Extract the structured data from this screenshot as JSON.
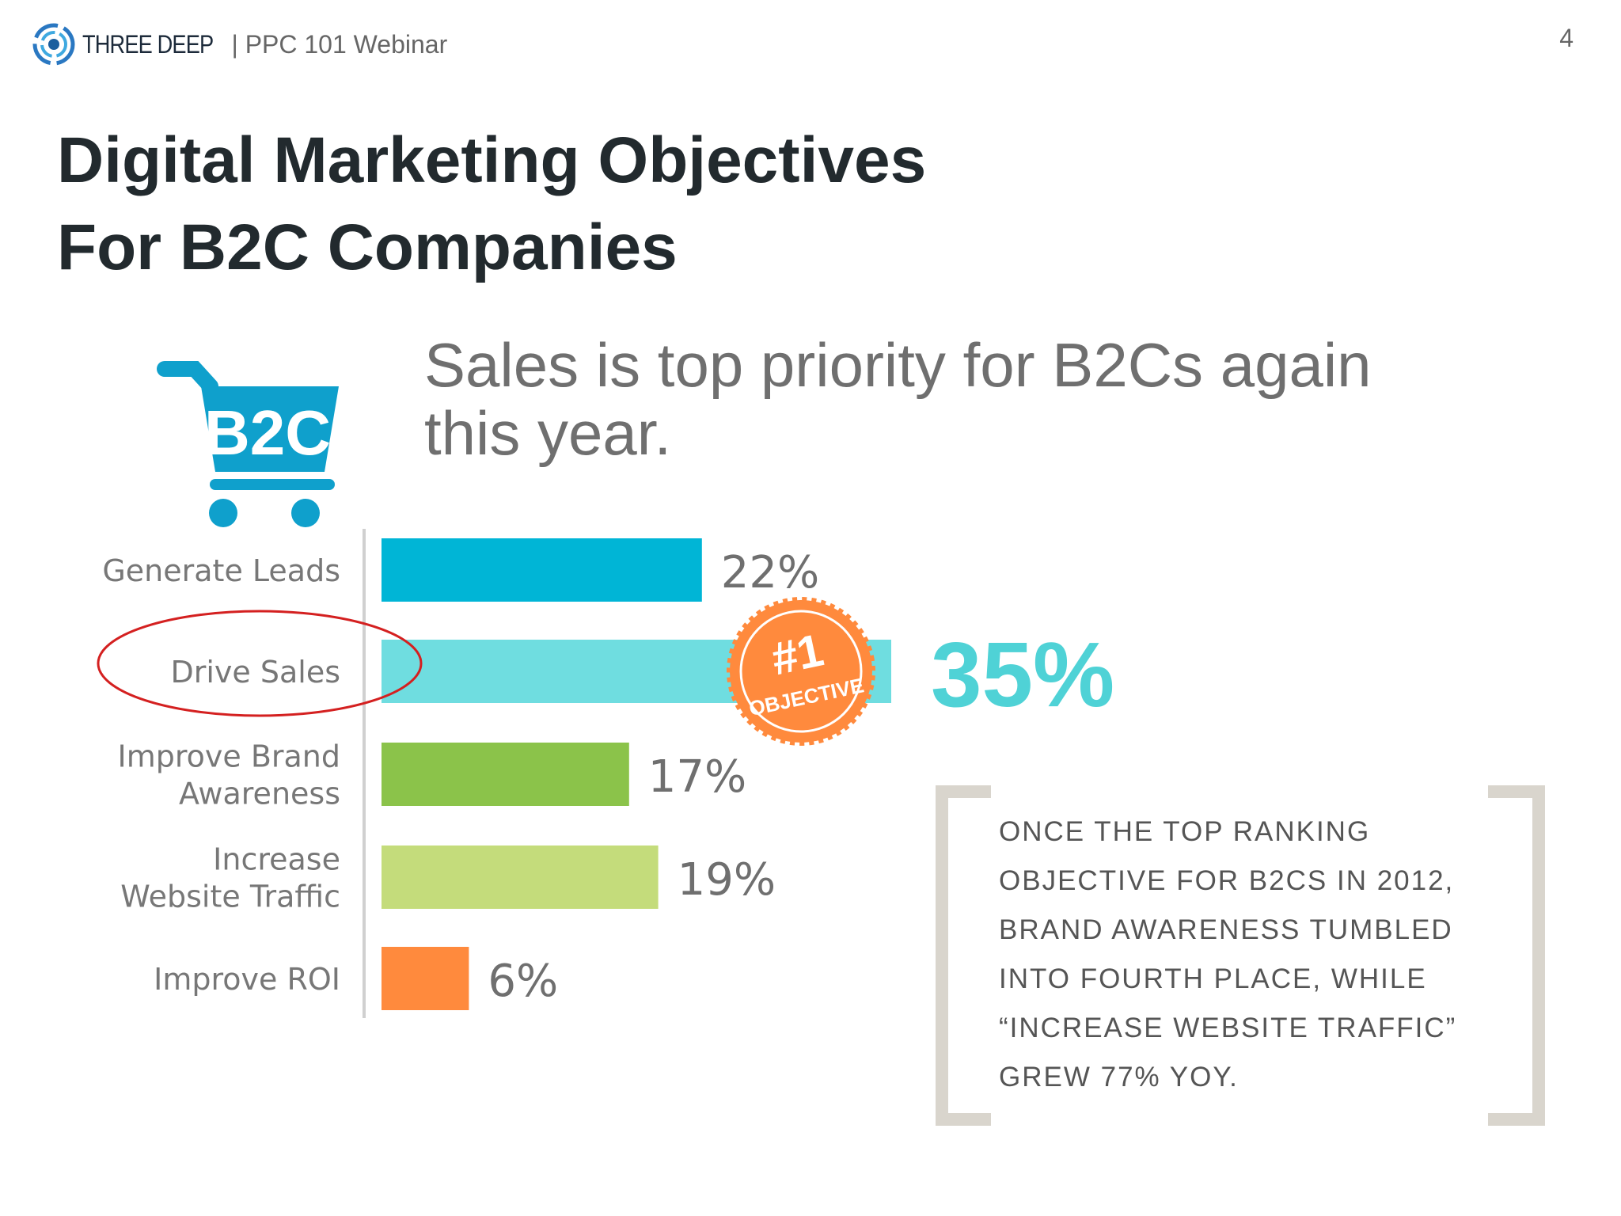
{
  "header": {
    "brand": "THREE DEEP",
    "subtitle": "| PPC 101 Webinar",
    "page_number": "4",
    "logo_icon": "swirl-logo-icon"
  },
  "slide": {
    "title_line1": "Digital Marketing Objectives",
    "title_line2": "For B2C Companies"
  },
  "infographic": {
    "headline_line1": "Sales is top priority for B2Cs again",
    "headline_line2": "this year.",
    "cart_label": "B2C",
    "cart_icon": "shopping-cart-icon",
    "badge_line1": "#1",
    "badge_line2": "OBJECTIVE",
    "highlight_color": "#d42020",
    "callout_lines": [
      "ONCE THE TOP RANKING",
      "OBJECTIVE FOR B2CS IN 2012,",
      "BRAND AWARENESS TUMBLED",
      "INTO FOURTH PLACE, WHILE",
      "“INCREASE WEBSITE TRAFFIC”",
      "GREW 77% YOY."
    ]
  },
  "chart_data": {
    "type": "bar",
    "orientation": "horizontal",
    "categories": [
      [
        "Generate Leads"
      ],
      [
        "Drive Sales"
      ],
      [
        "Improve Brand",
        "Awareness"
      ],
      [
        "Increase",
        "Website Traffic"
      ],
      [
        "Improve ROI"
      ]
    ],
    "values": [
      22,
      35,
      17,
      19,
      6
    ],
    "value_labels": [
      "22%",
      "35%",
      "17%",
      "19%",
      "6%"
    ],
    "colors": [
      "#00b5d6",
      "#6fdde0",
      "#8bc34a",
      "#c4dc7b",
      "#ff8a3d"
    ],
    "highlight_index": 1
  }
}
